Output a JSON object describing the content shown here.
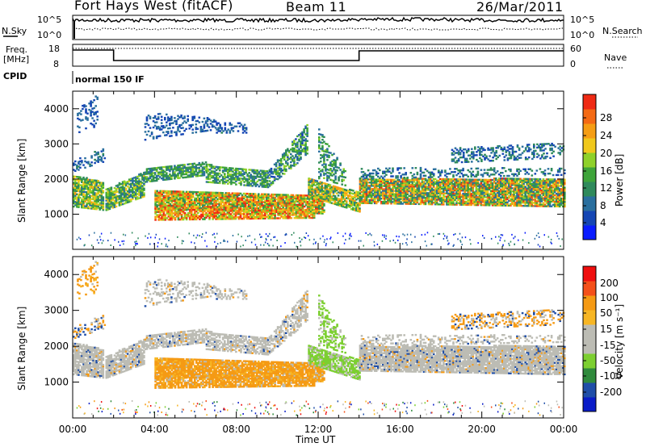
{
  "header": {
    "station": "Fort Hays West (fitACF)",
    "beam": "Beam 11",
    "date": "26/Mar/2011"
  },
  "top_panels": {
    "nsky": {
      "label": "N.Sky",
      "left_ticks": [
        "10^5",
        "10^0"
      ],
      "right_ticks": [
        "10^5",
        "10^0"
      ],
      "right_label": "N.Search"
    },
    "freq": {
      "label_line1": "Freq.",
      "label_line2": "[MHz]",
      "left_ticks": [
        "18",
        "8"
      ],
      "right_ticks": [
        "60",
        "0"
      ],
      "right_label": "Nave"
    },
    "cpid": {
      "label": "CPID",
      "program": "normal 150 IF"
    }
  },
  "colors": {
    "power_scale": [
      "#0a1cff",
      "#1546b4",
      "#2a6f9e",
      "#2f8a5c",
      "#3ea43a",
      "#8fd12a",
      "#f0c81c",
      "#f59d14",
      "#f46a14",
      "#ef2a14"
    ],
    "velocity_scale": [
      "#ef0e0e",
      "#f4501a",
      "#f59a14",
      "#f7b624",
      "#bcbcb4",
      "#bcbcb4",
      "#7ccf30",
      "#2f8a3c",
      "#1f4ea8",
      "#0a1cc8"
    ]
  },
  "chart_data": [
    {
      "type": "heatmap",
      "name": "Power",
      "xlabel": "",
      "ylabel": "Slant Range [km]",
      "x_ticks": [
        "00:00",
        "04:00",
        "08:00",
        "12:00",
        "16:00",
        "20:00",
        "00:00"
      ],
      "y_ticks": [
        "1000",
        "2000",
        "3000",
        "4000"
      ],
      "ylim": [
        0,
        4500
      ],
      "xlim": [
        0,
        24
      ],
      "colorbar": {
        "label": "Power [dB]",
        "ticks": [
          "4",
          "8",
          "12",
          "16",
          "20",
          "24",
          "28"
        ],
        "range": [
          0,
          30
        ]
      }
    },
    {
      "type": "heatmap",
      "name": "Velocity",
      "xlabel": "Time UT",
      "ylabel": "Slant Range [km]",
      "x_ticks": [
        "00:00",
        "04:00",
        "08:00",
        "12:00",
        "16:00",
        "20:00",
        "00:00"
      ],
      "y_ticks": [
        "1000",
        "2000",
        "3000",
        "4000"
      ],
      "ylim": [
        0,
        4500
      ],
      "xlim": [
        0,
        24
      ],
      "colorbar": {
        "label": "Velocity [m s⁻¹]",
        "ticks": [
          "200",
          "100",
          "50",
          "15",
          "-15",
          "-50",
          "-100",
          "-200"
        ],
        "range": [
          -250,
          250
        ]
      }
    }
  ]
}
